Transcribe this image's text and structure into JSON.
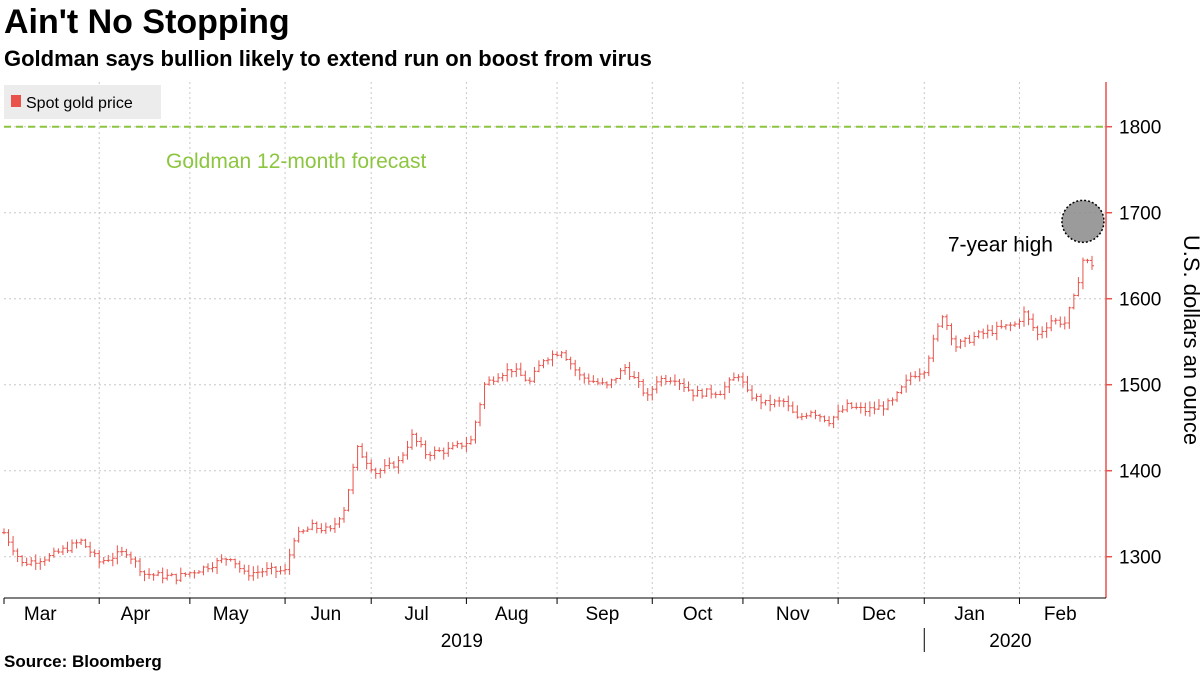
{
  "title": "Ain't No Stopping",
  "subtitle": "Goldman says bullion likely to extend run on boost from virus",
  "source": "Source:  Bloomberg",
  "colors": {
    "series": "#e8524a",
    "forecast": "#8cc63f",
    "grid": "#c8c8c8",
    "axis": "#e8524a",
    "marker": "#8a8a8a"
  },
  "chart_data": {
    "type": "ohlc",
    "title": "Ain't No Stopping",
    "subtitle": "Goldman says bullion likely to extend run on boost from virus",
    "legend": "Spot gold price",
    "legend_position": "top-left",
    "ylabel": "U.S. dollars an ounce",
    "ylim": [
      1252,
      1852
    ],
    "yticks": [
      1300,
      1400,
      1500,
      1600,
      1700,
      1800
    ],
    "grid": true,
    "xlim": [
      0,
      240
    ],
    "month_labels": [
      {
        "label": "Mar",
        "x": 8
      },
      {
        "label": "Apr",
        "x": 29
      },
      {
        "label": "May",
        "x": 50
      },
      {
        "label": "Jun",
        "x": 71
      },
      {
        "label": "Jul",
        "x": 91
      },
      {
        "label": "Aug",
        "x": 112
      },
      {
        "label": "Sep",
        "x": 132
      },
      {
        "label": "Oct",
        "x": 153
      },
      {
        "label": "Nov",
        "x": 174
      },
      {
        "label": "Dec",
        "x": 193
      },
      {
        "label": "Jan",
        "x": 213
      },
      {
        "label": "Feb",
        "x": 233
      }
    ],
    "month_boundaries": [
      0,
      21,
      41,
      62,
      81,
      102,
      122,
      143,
      163,
      184,
      203,
      224,
      244
    ],
    "year_labels": [
      {
        "label": "2019",
        "x": 101
      },
      {
        "label": "2020",
        "x": 222
      }
    ],
    "year_boundary": 203,
    "forecast": {
      "value": 1800,
      "label": "Goldman 12-month forecast"
    },
    "annotation": {
      "label": "7-year high",
      "x": 238,
      "value": 1690
    },
    "keypoints": [
      [
        0,
        1328
      ],
      [
        4,
        1292
      ],
      [
        10,
        1300
      ],
      [
        17,
        1318
      ],
      [
        21,
        1294
      ],
      [
        27,
        1306
      ],
      [
        31,
        1280
      ],
      [
        38,
        1276
      ],
      [
        44,
        1287
      ],
      [
        50,
        1300
      ],
      [
        53,
        1280
      ],
      [
        58,
        1284
      ],
      [
        62,
        1283
      ],
      [
        64,
        1322
      ],
      [
        68,
        1335
      ],
      [
        72,
        1330
      ],
      [
        75,
        1356
      ],
      [
        78,
        1425
      ],
      [
        82,
        1398
      ],
      [
        87,
        1410
      ],
      [
        90,
        1440
      ],
      [
        93,
        1420
      ],
      [
        98,
        1424
      ],
      [
        103,
        1435
      ],
      [
        106,
        1500
      ],
      [
        109,
        1512
      ],
      [
        112,
        1518
      ],
      [
        116,
        1503
      ],
      [
        119,
        1530
      ],
      [
        123,
        1540
      ],
      [
        127,
        1510
      ],
      [
        133,
        1498
      ],
      [
        137,
        1520
      ],
      [
        140,
        1500
      ],
      [
        142,
        1485
      ],
      [
        144,
        1506
      ],
      [
        148,
        1508
      ],
      [
        152,
        1490
      ],
      [
        158,
        1492
      ],
      [
        162,
        1512
      ],
      [
        164,
        1490
      ],
      [
        168,
        1478
      ],
      [
        172,
        1480
      ],
      [
        175,
        1460
      ],
      [
        178,
        1470
      ],
      [
        182,
        1458
      ],
      [
        186,
        1475
      ],
      [
        190,
        1470
      ],
      [
        194,
        1475
      ],
      [
        196,
        1480
      ],
      [
        200,
        1510
      ],
      [
        203,
        1518
      ],
      [
        207,
        1582
      ],
      [
        210,
        1545
      ],
      [
        215,
        1558
      ],
      [
        220,
        1566
      ],
      [
        223,
        1570
      ],
      [
        225,
        1583
      ],
      [
        228,
        1558
      ],
      [
        231,
        1575
      ],
      [
        234,
        1572
      ],
      [
        236,
        1600
      ],
      [
        238,
        1645
      ],
      [
        240,
        1640
      ]
    ]
  }
}
